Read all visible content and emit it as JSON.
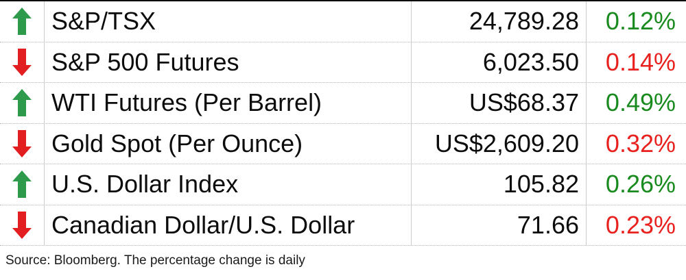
{
  "chart_data": {
    "type": "table",
    "columns": [
      "direction",
      "instrument",
      "value",
      "daily_change_pct"
    ],
    "rows": [
      {
        "direction": "up",
        "instrument": "S&P/TSX",
        "value": "24,789.28",
        "value_num": 24789.28,
        "change": "0.12%",
        "change_pct_num": 0.12
      },
      {
        "direction": "down",
        "instrument": "S&P 500 Futures",
        "value": "6,023.50",
        "value_num": 6023.5,
        "change": "0.14%",
        "change_pct_num": -0.14
      },
      {
        "direction": "up",
        "instrument": "WTI Futures (Per Barrel)",
        "value": "US$68.37",
        "value_num": 68.37,
        "change": "0.49%",
        "change_pct_num": 0.49
      },
      {
        "direction": "down",
        "instrument": "Gold Spot (Per Ounce)",
        "value": "US$2,609.20",
        "value_num": 2609.2,
        "change": "0.32%",
        "change_pct_num": -0.32
      },
      {
        "direction": "up",
        "instrument": "U.S. Dollar Index",
        "value": "105.82",
        "value_num": 105.82,
        "change": "0.26%",
        "change_pct_num": 0.26
      },
      {
        "direction": "down",
        "instrument": "Canadian Dollar/U.S. Dollar",
        "value": "71.66",
        "value_num": 71.66,
        "change": "0.23%",
        "change_pct_num": -0.23
      }
    ],
    "source_note": "Source: Bloomberg. The percentage change is daily",
    "legend_position": "none",
    "grid": "row-and-column-dividers"
  },
  "colors": {
    "up_arrow_green": "#2d9b4b",
    "down_arrow_red": "#e31e20",
    "pct_up_green": "#188a1e",
    "pct_down_red": "#e8211e",
    "text_black": "#0c0c0c",
    "divider_gray": "#cbcbcb",
    "top_border_black": "#0a0a0a"
  },
  "icons": {
    "up": "up-arrow-icon",
    "down": "down-arrow-icon"
  }
}
